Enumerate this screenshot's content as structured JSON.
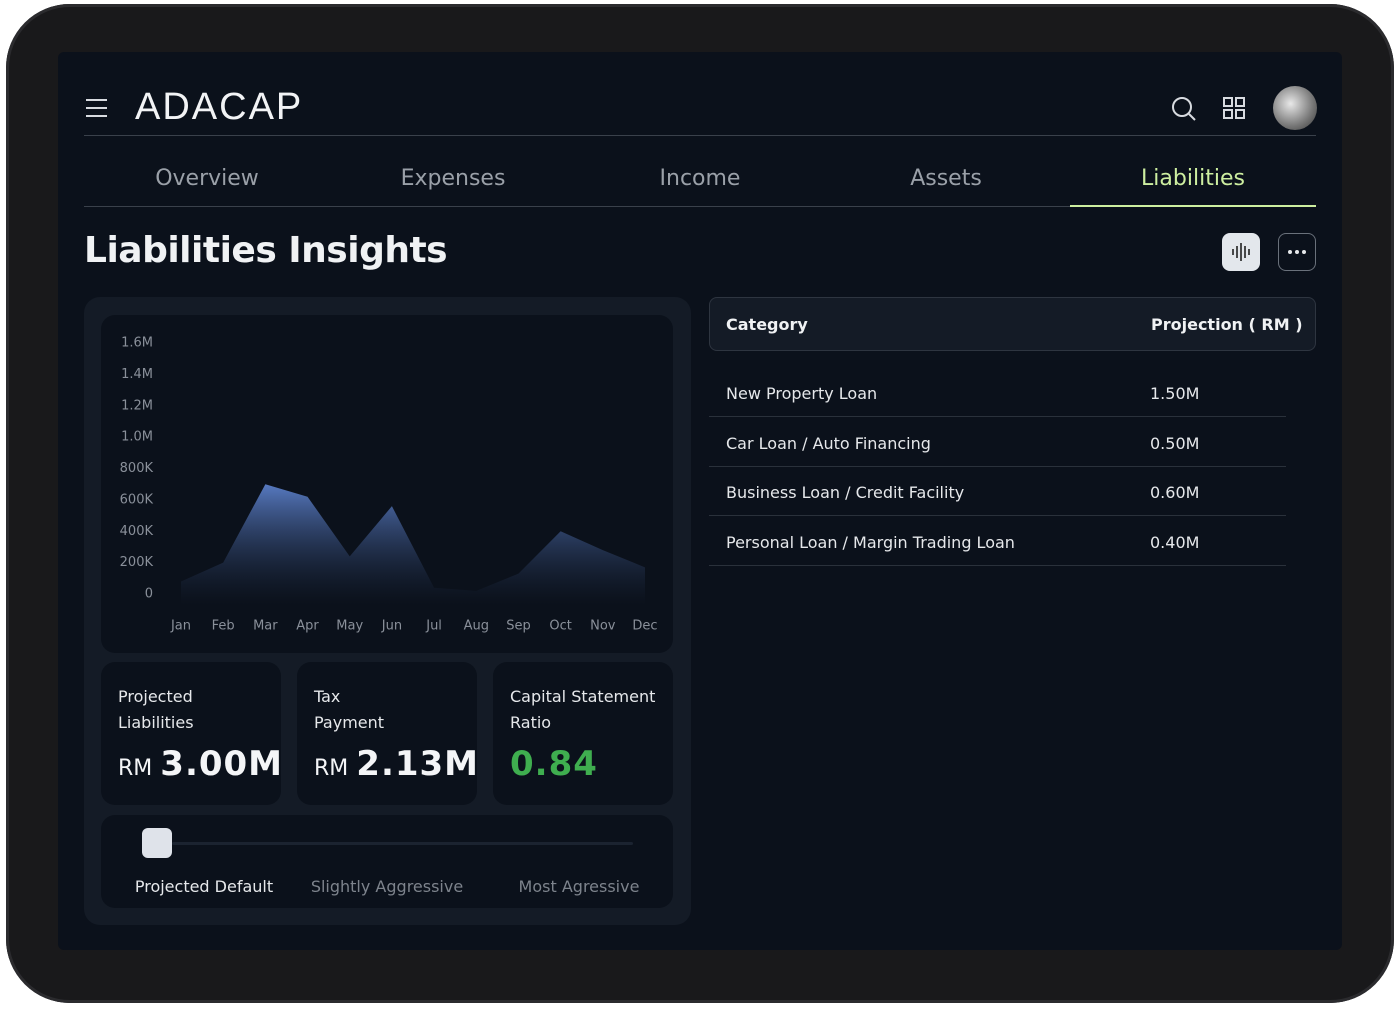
{
  "header": {
    "logo": "ADACAP"
  },
  "tabs": [
    "Overview",
    "Expenses",
    "Income",
    "Assets",
    "Liabilities"
  ],
  "page_title": "Liabilities Insights",
  "chart_data": {
    "type": "area",
    "categories": [
      "Jan",
      "Feb",
      "Mar",
      "Apr",
      "May",
      "Jun",
      "Jul",
      "Aug",
      "Sep",
      "Oct",
      "Nov",
      "Dec"
    ],
    "values": [
      80000,
      200000,
      700000,
      620000,
      240000,
      560000,
      40000,
      20000,
      130000,
      400000,
      280000,
      170000
    ],
    "color": "#5b7fc9",
    "ylim": [
      0,
      1600000
    ],
    "yticks": [
      0,
      {
        "value": 200000,
        "label": "200K"
      },
      {
        "value": 400000,
        "label": "400K"
      },
      {
        "value": 600000,
        "label": "600K"
      },
      {
        "value": 800000,
        "label": "800K"
      },
      {
        "value": 1000000,
        "label": "1.0M"
      },
      {
        "value": 1200000,
        "label": "1.2M"
      },
      {
        "value": 1400000,
        "label": "1.4M"
      },
      {
        "value": 1600000,
        "label": "1.6M"
      }
    ]
  },
  "stats": [
    {
      "label": "Projected Liabilities",
      "unit": "RM",
      "value": "3.00M"
    },
    {
      "label": "Tax Payment",
      "unit": "RM",
      "value": "2.13M"
    },
    {
      "label": "Capital Statement Ratio",
      "value": "0.84"
    }
  ],
  "slider": {
    "options": [
      "Projected Default",
      "Slightly Aggressive",
      "Most Agressive"
    ]
  },
  "table": {
    "columns": [
      "Category",
      "Projection ( RM )"
    ],
    "rows": [
      [
        "New Property Loan",
        "1.50M"
      ],
      [
        "Car Loan / Auto Financing",
        "0.50M"
      ],
      [
        "Business Loan / Credit Facility",
        "0.60M"
      ],
      [
        "Personal Loan / Margin Trading Loan",
        "0.40M"
      ]
    ]
  }
}
